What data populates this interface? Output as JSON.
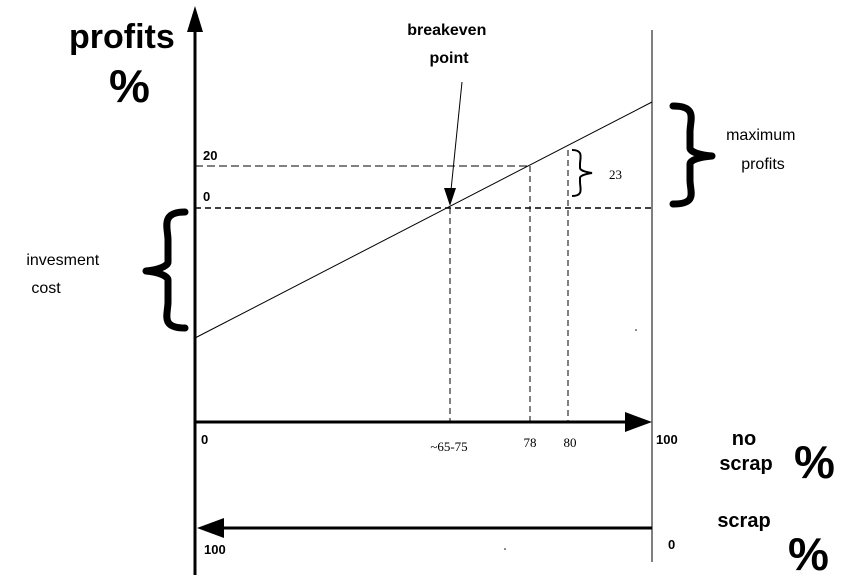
{
  "y_axis": {
    "title": "profits",
    "unit": "%",
    "tick_20": "20",
    "tick_0": "0"
  },
  "x_axis_no_scrap": {
    "title_line1": "no",
    "title_line2": "scrap",
    "unit": "%",
    "start": "0",
    "end": "100",
    "tick_breakeven": "~65-75",
    "tick_78": "78",
    "tick_80": "80"
  },
  "x_axis_scrap": {
    "title": "scrap",
    "unit": "%",
    "start": "100",
    "end": "0"
  },
  "annotations": {
    "breakeven_line1": "breakeven",
    "breakeven_line2": "point",
    "max_profit_line1": "maximum",
    "max_profit_line2": "profits",
    "investment_line1": "invesment",
    "investment_line2": "cost",
    "gap": "23"
  }
}
